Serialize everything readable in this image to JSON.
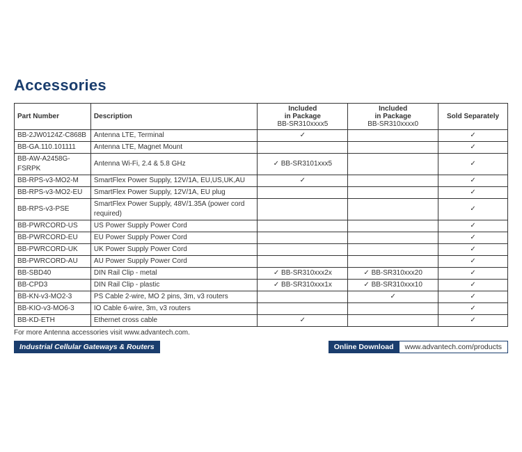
{
  "title": "Accessories",
  "headers": {
    "part_number": "Part Number",
    "description": "Description",
    "pkg5_line1": "Included",
    "pkg5_line2": "in Package",
    "pkg5_line3": "BB-SR310xxxx5",
    "pkg0_line1": "Included",
    "pkg0_line2": "in Package",
    "pkg0_line3": "BB-SR310xxxx0",
    "sold": "Sold Separately"
  },
  "rows": [
    {
      "pn": "BB-2JW0124Z-C868B",
      "desc": "Antenna LTE, Terminal",
      "p5": "✓",
      "p0": "",
      "sold": "✓"
    },
    {
      "pn": "BB-GA.110.101111",
      "desc": "Antenna LTE, Magnet Mount",
      "p5": "",
      "p0": "",
      "sold": "✓"
    },
    {
      "pn": "BB-AW-A2458G-FSRPK",
      "desc": "Antenna Wi-Fi, 2.4 & 5.8 GHz",
      "p5": "✓    BB-SR3101xxx5",
      "p0": "",
      "sold": "✓"
    },
    {
      "pn": "BB-RPS-v3-MO2-M",
      "desc": "SmartFlex Power Supply, 12V/1A, EU,US,UK,AU",
      "p5": "✓",
      "p0": "",
      "sold": "✓"
    },
    {
      "pn": "BB-RPS-v3-MO2-EU",
      "desc": "SmartFlex Power Supply, 12V/1A, EU plug",
      "p5": "",
      "p0": "",
      "sold": "✓"
    },
    {
      "pn": "BB-RPS-v3-PSE",
      "desc": "SmartFlex Power Supply, 48V/1.35A (power cord required)",
      "p5": "",
      "p0": "",
      "sold": "✓"
    },
    {
      "pn": "BB-PWRCORD-US",
      "desc": "US Power Supply Power Cord",
      "p5": "",
      "p0": "",
      "sold": "✓"
    },
    {
      "pn": "BB-PWRCORD-EU",
      "desc": "EU Power Supply Power Cord",
      "p5": "",
      "p0": "",
      "sold": "✓"
    },
    {
      "pn": "BB-PWRCORD-UK",
      "desc": "UK Power Supply Power Cord",
      "p5": "",
      "p0": "",
      "sold": "✓"
    },
    {
      "pn": "BB-PWRCORD-AU",
      "desc": "AU Power Supply Power Cord",
      "p5": "",
      "p0": "",
      "sold": "✓"
    },
    {
      "pn": "BB-SBD40",
      "desc": "DIN Rail Clip - metal",
      "p5": "✓    BB-SR310xxx2x",
      "p0": "✓    BB-SR310xxx20",
      "sold": "✓"
    },
    {
      "pn": "BB-CPD3",
      "desc": "DIN Rail Clip - plastic",
      "p5": "✓    BB-SR310xxx1x",
      "p0": "✓    BB-SR310xxx10",
      "sold": "✓"
    },
    {
      "pn": "BB-KN-v3-MO2-3",
      "desc": "PS Cable 2-wire, MO 2 pins, 3m, v3 routers",
      "p5": "",
      "p0": "✓",
      "sold": "✓"
    },
    {
      "pn": "BB-KIO-v3-MO6-3",
      "desc": "IO Cable 6-wire, 3m, v3 routers",
      "p5": "",
      "p0": "",
      "sold": "✓"
    },
    {
      "pn": "BB-KD-ETH",
      "desc": "Ethernet cross cable",
      "p5": "✓",
      "p0": "",
      "sold": "✓"
    }
  ],
  "footnote": "For more Antenna accessories visit www.advantech.com.",
  "footer": {
    "left": "Industrial Cellular Gateways & Routers",
    "mid": "Online Download",
    "right": "www.advantech.com/products"
  }
}
